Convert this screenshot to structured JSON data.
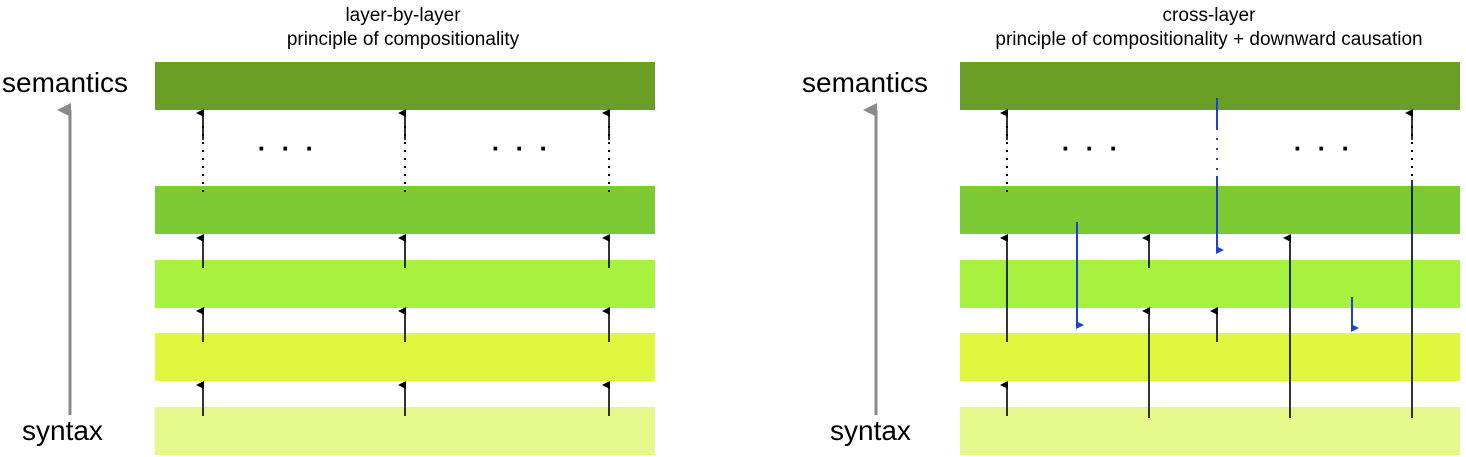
{
  "colors": {
    "semantics_layer": "#6a9f25",
    "layer_2": "#7acb34",
    "layer_3": "#a6f23f",
    "layer_4": "#dff73f",
    "syntax_layer": "#e4f98c",
    "axis_arrow": "#8a8a8a",
    "upward_arrow": "#000000",
    "downward_arrow": "#1f3fd8"
  },
  "left_panel": {
    "title_line1": "layer-by-layer",
    "title_line2": "principle of compositionality",
    "top_label": "semantics",
    "bottom_label": "syntax",
    "ellipses": [
      "· · ·",
      "· · ·"
    ]
  },
  "right_panel": {
    "title_line1": "cross-layer",
    "title_line2": "principle of compositionality + downward causation",
    "top_label": "semantics",
    "bottom_label": "syntax",
    "ellipses": [
      "· · ·",
      "· · ·"
    ]
  }
}
